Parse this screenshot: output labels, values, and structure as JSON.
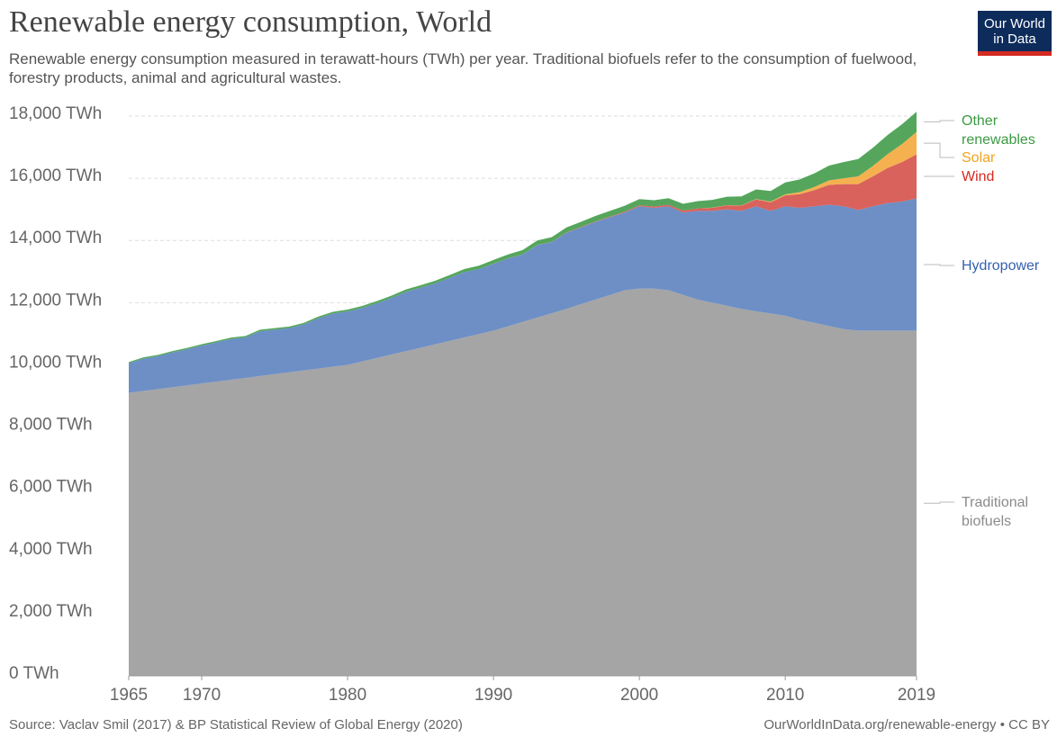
{
  "chart_data": {
    "type": "area",
    "title": "Renewable energy consumption, World",
    "subtitle": "Renewable energy consumption measured in terawatt-hours (TWh) per year. Traditional biofuels refer to the consumption of fuelwood, forestry products, animal and agricultural wastes.",
    "logo": "Our World in Data",
    "source": "Source: Vaclav Smil (2017) & BP Statistical Review of Global Energy (2020)",
    "url": "OurWorldInData.org/renewable-energy • CC BY",
    "stacked": true,
    "grid": true,
    "x": [
      1965,
      1966,
      1967,
      1968,
      1969,
      1970,
      1971,
      1972,
      1973,
      1974,
      1975,
      1976,
      1977,
      1978,
      1979,
      1980,
      1981,
      1982,
      1983,
      1984,
      1985,
      1986,
      1987,
      1988,
      1989,
      1990,
      1991,
      1992,
      1993,
      1994,
      1995,
      1996,
      1997,
      1998,
      1999,
      2000,
      2001,
      2002,
      2003,
      2004,
      2005,
      2006,
      2007,
      2008,
      2009,
      2010,
      2011,
      2012,
      2013,
      2014,
      2015,
      2016,
      2017,
      2018,
      2019
    ],
    "xlim": [
      1965,
      2019
    ],
    "xticks": [
      1965,
      1970,
      1980,
      1990,
      2000,
      2010,
      2019
    ],
    "ylim": [
      0,
      18000
    ],
    "yticks": [
      {
        "value": 0,
        "label": "0 TWh"
      },
      {
        "value": 2000,
        "label": "2,000 TWh"
      },
      {
        "value": 4000,
        "label": "4,000 TWh"
      },
      {
        "value": 6000,
        "label": "6,000 TWh"
      },
      {
        "value": 8000,
        "label": "8,000 TWh"
      },
      {
        "value": 10000,
        "label": "10,000 TWh"
      },
      {
        "value": 12000,
        "label": "12,000 TWh"
      },
      {
        "value": 14000,
        "label": "14,000 TWh"
      },
      {
        "value": 16000,
        "label": "16,000 TWh"
      },
      {
        "value": 18000,
        "label": "18,000 TWh"
      }
    ],
    "series": [
      {
        "name": "Traditional biofuels",
        "color": "#a5a5a5",
        "label_color": "#8a8a8a",
        "values": [
          9100,
          9160,
          9220,
          9280,
          9340,
          9400,
          9460,
          9520,
          9580,
          9640,
          9700,
          9760,
          9820,
          9880,
          9940,
          10000,
          10110,
          10220,
          10330,
          10440,
          10550,
          10660,
          10770,
          10880,
          10990,
          11100,
          11240,
          11380,
          11520,
          11660,
          11800,
          11950,
          12100,
          12250,
          12400,
          12450,
          12450,
          12400,
          12250,
          12100,
          12000,
          11900,
          11800,
          11720,
          11650,
          11580,
          11450,
          11350,
          11250,
          11150,
          11100,
          11100,
          11100,
          11100,
          11100
        ]
      },
      {
        "name": "Hydropower",
        "color": "#6d8fc6",
        "label_color": "#3561b0",
        "values": [
          950,
          1040,
          1060,
          1120,
          1160,
          1220,
          1260,
          1310,
          1300,
          1440,
          1430,
          1420,
          1480,
          1620,
          1710,
          1720,
          1720,
          1760,
          1820,
          1910,
          1930,
          1960,
          2030,
          2100,
          2090,
          2150,
          2180,
          2170,
          2330,
          2290,
          2450,
          2470,
          2500,
          2500,
          2500,
          2650,
          2600,
          2700,
          2650,
          2850,
          2950,
          3100,
          3150,
          3380,
          3300,
          3520,
          3600,
          3750,
          3900,
          3950,
          3880,
          4000,
          4100,
          4150,
          4250
        ]
      },
      {
        "name": "Wind",
        "color": "#d9625c",
        "label_color": "#d42b21",
        "values": [
          0,
          0,
          0,
          0,
          0,
          0,
          0,
          0,
          0,
          0,
          0,
          0,
          0,
          0,
          0,
          0,
          0,
          0,
          0,
          0,
          0,
          0,
          0,
          0,
          0,
          4,
          4,
          5,
          6,
          7,
          8,
          12,
          16,
          20,
          25,
          30,
          40,
          50,
          60,
          80,
          100,
          130,
          170,
          220,
          280,
          350,
          440,
          520,
          640,
          710,
          830,
          960,
          1130,
          1270,
          1420
        ]
      },
      {
        "name": "Solar",
        "color": "#f5b14f",
        "label_color": "#f2a320",
        "values": [
          0,
          0,
          0,
          0,
          0,
          0,
          0,
          0,
          0,
          0,
          0,
          0,
          0,
          0,
          0,
          0,
          0,
          0,
          0,
          0,
          0,
          0,
          0,
          0,
          0,
          0,
          0,
          0,
          0,
          0,
          0,
          0,
          0,
          0,
          0,
          0,
          0,
          0,
          0,
          0,
          4,
          6,
          8,
          12,
          20,
          34,
          65,
          100,
          140,
          190,
          250,
          330,
          440,
          580,
          720
        ]
      },
      {
        "name": "Other renewables",
        "color": "#55a65c",
        "label_color": "#3c9a43",
        "values": [
          40,
          41,
          42,
          43,
          44,
          45,
          46,
          47,
          48,
          49,
          50,
          51,
          52,
          54,
          56,
          60,
          64,
          68,
          72,
          76,
          80,
          85,
          90,
          100,
          110,
          120,
          128,
          136,
          144,
          152,
          160,
          168,
          176,
          184,
          192,
          200,
          205,
          210,
          220,
          235,
          250,
          270,
          290,
          310,
          340,
          380,
          410,
          440,
          480,
          520,
          560,
          590,
          615,
          635,
          650
        ]
      }
    ]
  }
}
